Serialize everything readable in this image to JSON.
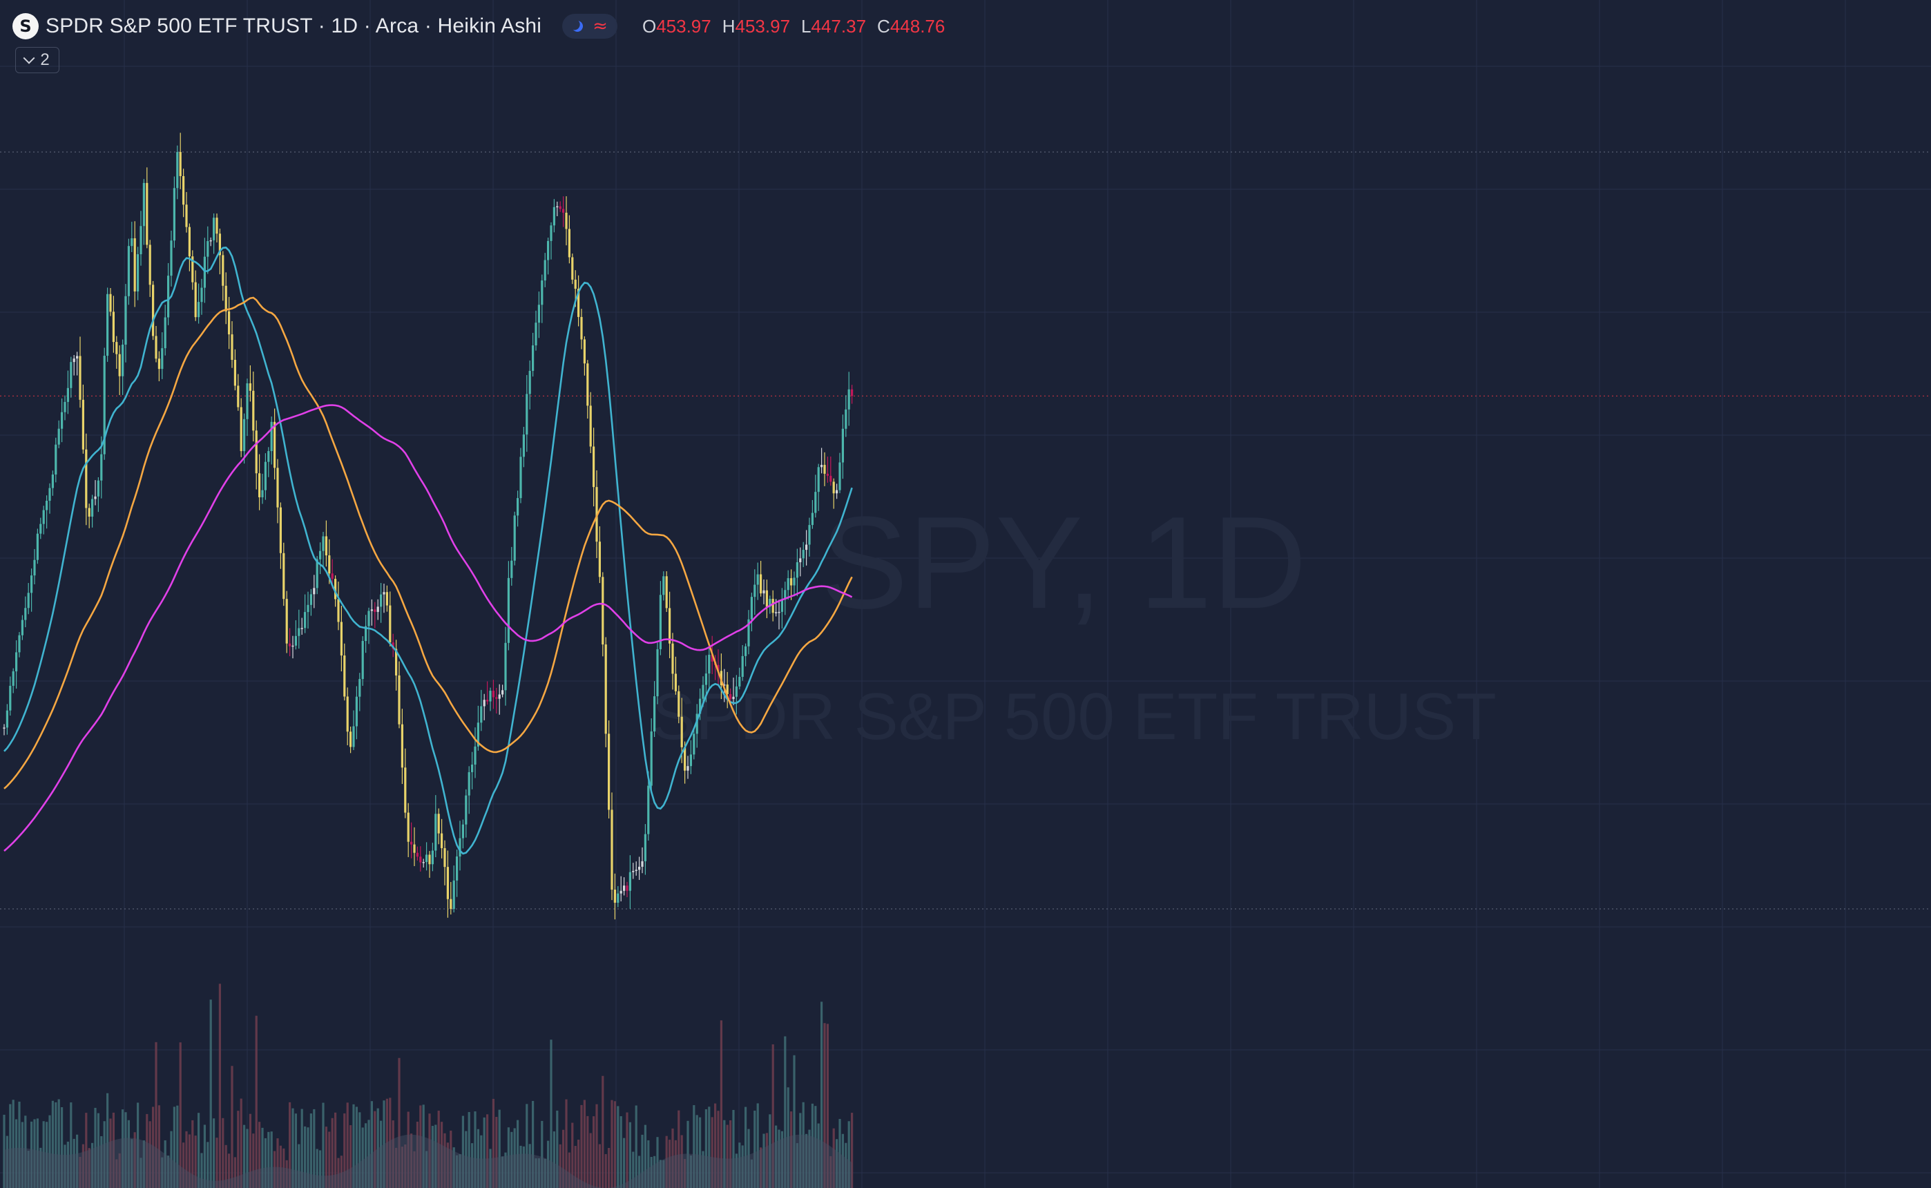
{
  "legend": {
    "logo_letter": "S",
    "title": "SPDR S&P 500 ETF TRUST · 1D · Arca · Heikin Ashi",
    "mode_icons": [
      "moon-icon",
      "wave-icon"
    ],
    "wave_glyph": "≈",
    "ohlc": {
      "o_label": "O",
      "o_value": "453.97",
      "h_label": "H",
      "h_value": "453.97",
      "l_label": "L",
      "l_value": "447.37",
      "c_label": "C",
      "c_value": "448.76"
    },
    "indicators_count": "2"
  },
  "watermark": {
    "symbol": "SPY, 1D",
    "name": "SPDR S&P 500 ETF TRUST"
  },
  "colors": {
    "background": "#1b2236",
    "grid": "#27304a",
    "candle_up": "#4db6ac",
    "candle_down": "#e8d36a",
    "candle_weak_up": "#d6d8dd",
    "candle_weak_down": "#c2185b",
    "ma_short": "#40b4d0",
    "ma_mid": "#f5a742",
    "ma_long": "#e040e8",
    "price_line": "#f23645",
    "volume_up": "#3f6d74",
    "volume_down": "#6e3d4d",
    "volume_ma_area": "#4a5366"
  },
  "chart_data": {
    "type": "candlestick",
    "symbol": "SPY",
    "interval": "1D",
    "style": "Heikin Ashi",
    "anchor_path": [
      [
        0,
        430
      ],
      [
        60,
        480
      ],
      [
        120,
        520
      ],
      [
        185,
        570
      ],
      [
        215,
        505
      ],
      [
        250,
        525
      ],
      [
        265,
        590
      ],
      [
        300,
        555
      ],
      [
        326,
        612
      ],
      [
        338,
        588
      ],
      [
        361,
        625
      ],
      [
        382,
        575
      ],
      [
        400,
        560
      ],
      [
        425,
        593
      ],
      [
        445,
        640
      ],
      [
        495,
        580
      ],
      [
        520,
        600
      ],
      [
        545,
        615
      ],
      [
        580,
        575
      ],
      [
        610,
        535
      ],
      [
        612,
        530
      ],
      [
        630,
        560
      ],
      [
        660,
        510
      ],
      [
        690,
        540
      ],
      [
        730,
        460
      ],
      [
        780,
        470
      ],
      [
        825,
        500
      ],
      [
        862,
        470
      ],
      [
        890,
        420
      ],
      [
        935,
        470
      ],
      [
        980,
        480
      ],
      [
        1010,
        450
      ],
      [
        1040,
        390
      ],
      [
        1100,
        380
      ],
      [
        1115,
        400
      ],
      [
        1150,
        365
      ],
      [
        1230,
        440
      ],
      [
        1287,
        445
      ],
      [
        1300,
        480
      ],
      [
        1360,
        565
      ],
      [
        1420,
        620
      ],
      [
        1450,
        612
      ],
      [
        1495,
        565
      ],
      [
        1540,
        480
      ],
      [
        1570,
        365
      ],
      [
        1650,
        385
      ],
      [
        1700,
        490
      ],
      [
        1730,
        445
      ],
      [
        1760,
        412
      ],
      [
        1790,
        435
      ],
      [
        1820,
        460
      ],
      [
        1870,
        440
      ],
      [
        1900,
        450
      ],
      [
        1940,
        485
      ],
      [
        1990,
        470
      ],
      [
        2030,
        484
      ],
      [
        2075,
        500
      ],
      [
        2105,
        527
      ],
      [
        2150,
        515
      ],
      [
        2175,
        552
      ],
      [
        2188,
        548
      ]
    ],
    "moving_averages": [
      "short",
      "mid",
      "long"
    ],
    "volume": true
  }
}
